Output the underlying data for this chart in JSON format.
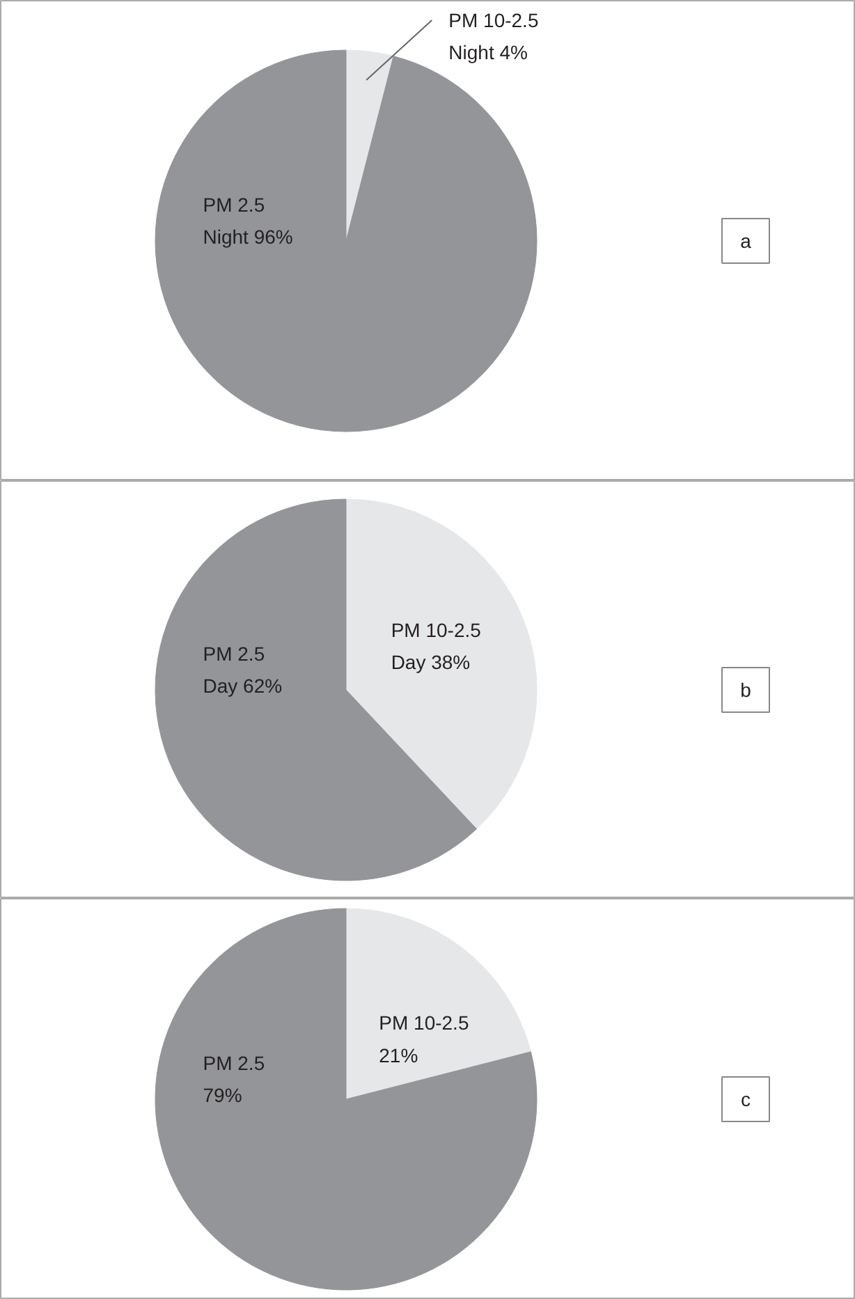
{
  "chart_data": [
    {
      "type": "pie",
      "title": "a",
      "categories": [
        "PM 10-2.5\nNight",
        "PM 2.5\nNight"
      ],
      "values": [
        4,
        96
      ],
      "value_labels": [
        "4%",
        "96%"
      ],
      "colors": [
        "#e6e7e8",
        "#939598"
      ]
    },
    {
      "type": "pie",
      "title": "b",
      "categories": [
        "PM 10-2.5\nDay",
        "PM 2.5\nDay"
      ],
      "values": [
        38,
        62
      ],
      "value_labels": [
        "38%",
        "62%"
      ],
      "colors": [
        "#e6e7e8",
        "#939598"
      ]
    },
    {
      "type": "pie",
      "title": "c",
      "categories": [
        "PM 10-2.5",
        "PM 2.5"
      ],
      "values": [
        21,
        79
      ],
      "value_labels": [
        "21%",
        "79%"
      ],
      "colors": [
        "#e6e7e8",
        "#939598"
      ]
    }
  ]
}
